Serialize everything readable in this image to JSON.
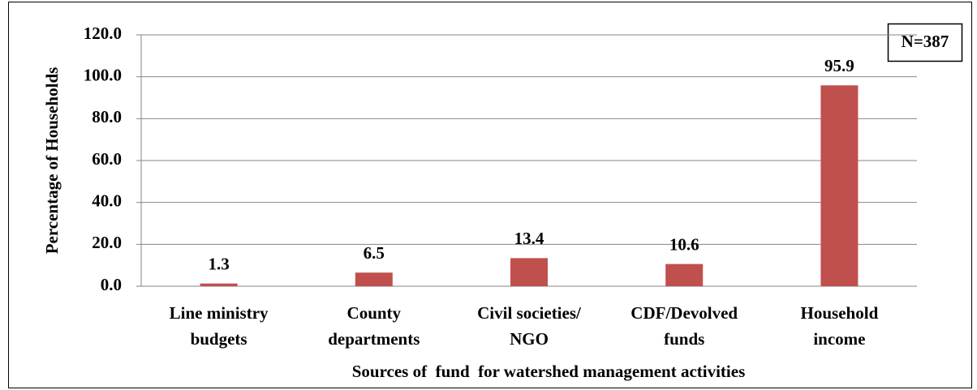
{
  "chart_data": {
    "type": "bar",
    "x_label": "Sources of  fund  for watershed management activities",
    "y_label": "Percentage of Households",
    "annotation": "N=387",
    "categories": [
      [
        "Line ministry",
        "budgets"
      ],
      [
        "County",
        "departments"
      ],
      [
        "Civil societies/",
        "NGO"
      ],
      [
        "CDF/Devolved",
        "funds"
      ],
      [
        "Household",
        "income"
      ]
    ],
    "values": [
      1.3,
      6.5,
      13.4,
      10.6,
      95.9
    ],
    "color": "#c0504d",
    "ylim": [
      0,
      120
    ],
    "yticks": [
      {
        "value": 0,
        "label": "0.0"
      },
      {
        "value": 20,
        "label": "20.0"
      },
      {
        "value": 40,
        "label": "40.0"
      },
      {
        "value": 60,
        "label": "60.0"
      },
      {
        "value": 80,
        "label": "80.0"
      },
      {
        "value": 100,
        "label": "100.0"
      },
      {
        "value": 120,
        "label": "120.0"
      }
    ],
    "grid": true
  }
}
